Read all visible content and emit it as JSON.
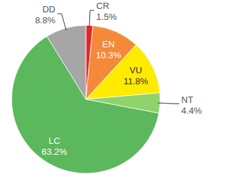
{
  "chart_data": {
    "type": "pie",
    "categories": [
      "CR",
      "EN",
      "VU",
      "NT",
      "LC",
      "DD"
    ],
    "values": [
      1.5,
      10.3,
      11.8,
      4.4,
      63.2,
      8.8
    ],
    "value_labels": [
      "1.5%",
      "10.3%",
      "11.8%",
      "4.4%",
      "63.2%",
      "8.8%"
    ],
    "colors": [
      "#e3262b",
      "#f5893a",
      "#ffea00",
      "#8fd36a",
      "#5bb85d",
      "#a6a6a6"
    ],
    "data_labels": true
  }
}
